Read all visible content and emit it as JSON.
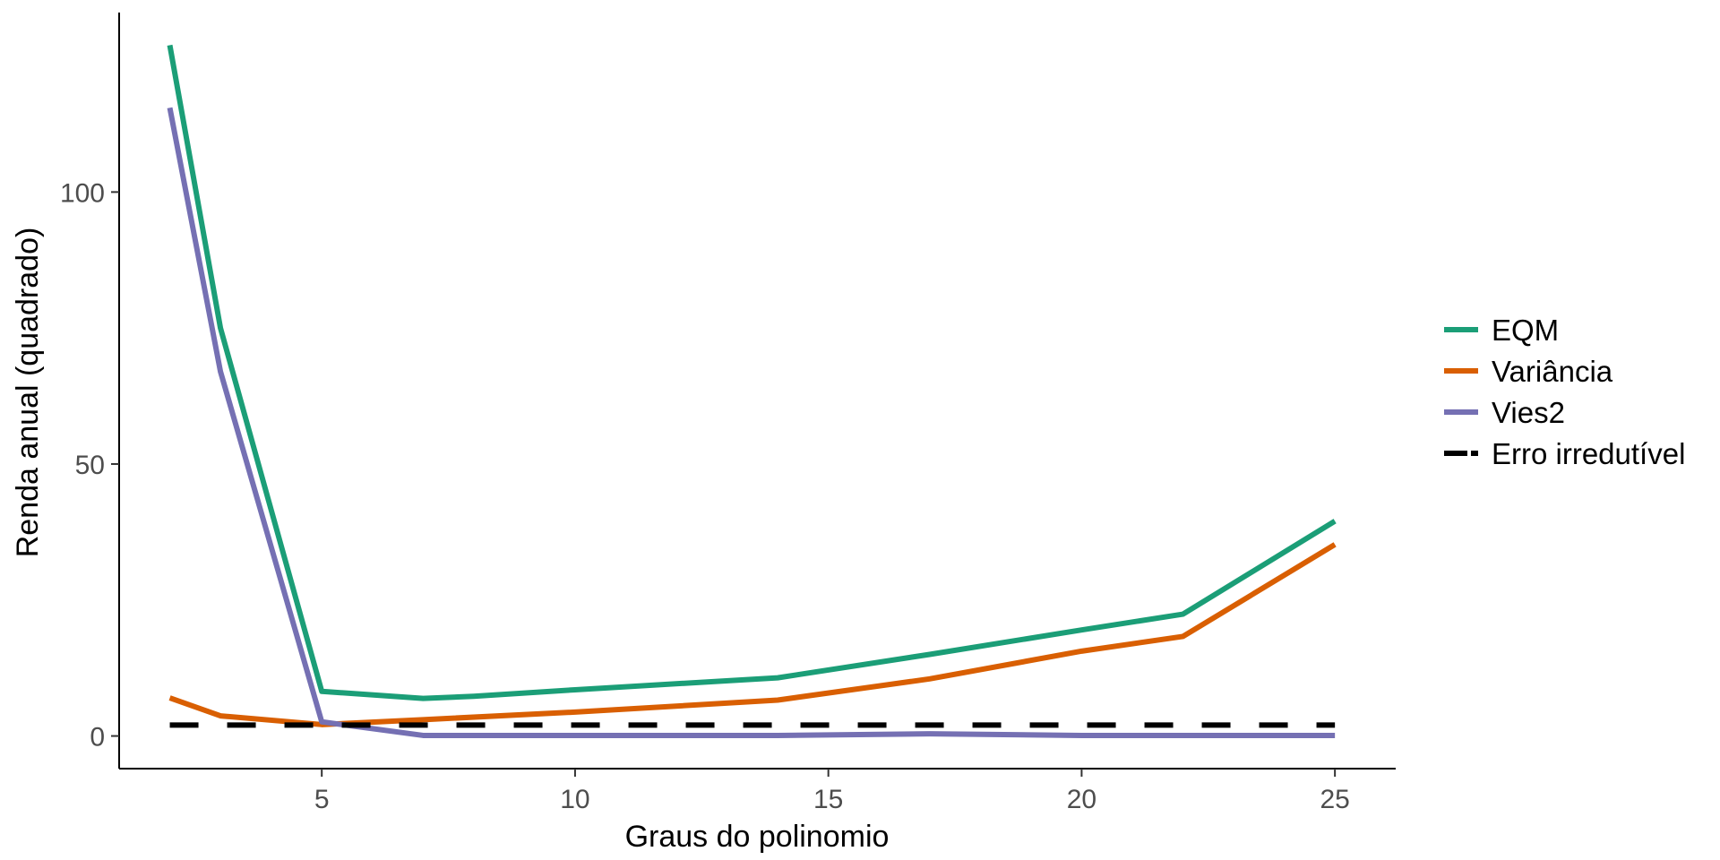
{
  "chart_data": {
    "type": "line",
    "title": "",
    "xlabel": "Graus do polinomio",
    "ylabel": "Renda anual (quadrado)",
    "xlim": [
      1,
      26.2
    ],
    "ylim": [
      -6,
      133
    ],
    "x_ticks": [
      5,
      10,
      15,
      20,
      25
    ],
    "y_ticks": [
      0,
      50,
      100
    ],
    "x_tick_labels": [
      "5",
      "10",
      "15",
      "20",
      "25"
    ],
    "y_tick_labels": [
      "0",
      "50",
      "100"
    ],
    "grid": false,
    "legend_position": "right",
    "series": [
      {
        "name": "EQM",
        "color": "#1B9E77",
        "dash": "solid",
        "x": [
          2,
          3,
          5,
          7,
          8,
          10,
          14,
          17,
          20,
          22,
          25
        ],
        "y": [
          127,
          75,
          8.2,
          6.9,
          7.3,
          8.5,
          10.7,
          15,
          19.5,
          22.4,
          39.5
        ]
      },
      {
        "name": "Variância",
        "color": "#D95F02",
        "dash": "solid",
        "x": [
          2,
          3,
          5,
          7,
          10,
          14,
          17,
          20,
          22,
          25
        ],
        "y": [
          7,
          3.7,
          2.1,
          3,
          4.4,
          6.6,
          10.5,
          15.6,
          18.3,
          35.2
        ]
      },
      {
        "name": "Vies2",
        "color": "#7570B3",
        "dash": "solid",
        "x": [
          2,
          3,
          5,
          7,
          10,
          14,
          17,
          20,
          22,
          25
        ],
        "y": [
          115.5,
          67,
          2.6,
          0.1,
          0.1,
          0.1,
          0.4,
          0.1,
          0.1,
          0.1
        ]
      },
      {
        "name": "Erro irredutível",
        "color": "#000000",
        "dash": "dashed",
        "x": [
          2,
          25
        ],
        "y": [
          2,
          2
        ]
      }
    ]
  }
}
